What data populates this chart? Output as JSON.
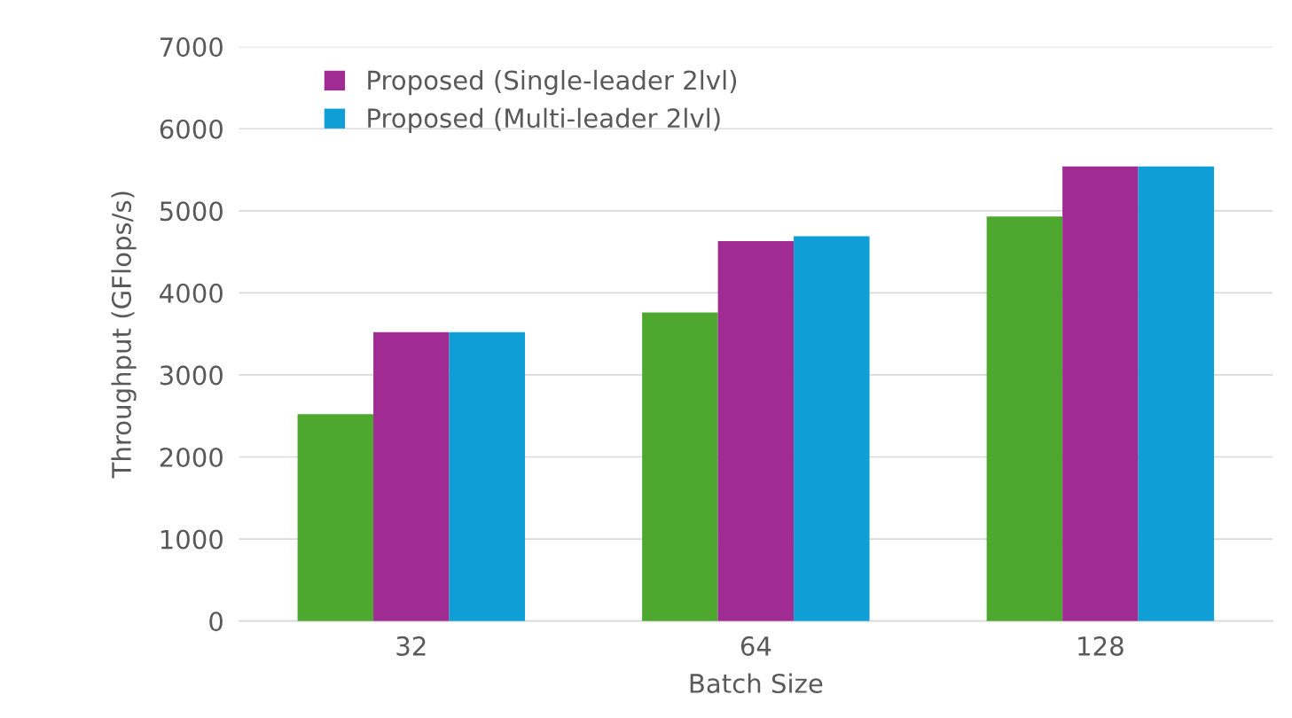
{
  "chart_data": {
    "type": "bar",
    "xlabel": "Batch Size",
    "ylabel": "Throughput (GFlops/s)",
    "categories": [
      "32",
      "64",
      "128"
    ],
    "series": [
      {
        "color": "#4ea72e",
        "values": [
          2520,
          3760,
          4930
        ]
      },
      {
        "name": "Proposed (Single-leader 2lvl)",
        "color": "#a02b93",
        "values": [
          3520,
          4630,
          5540
        ]
      },
      {
        "name": "Proposed (Multi-leader 2lvl)",
        "color": "#0f9ed5",
        "values": [
          3520,
          4690,
          5540
        ]
      }
    ],
    "ylim": [
      0,
      7000
    ],
    "yticks": [
      0,
      1000,
      2000,
      3000,
      4000,
      5000,
      6000,
      7000
    ],
    "grid": "y",
    "legend": "top left"
  }
}
